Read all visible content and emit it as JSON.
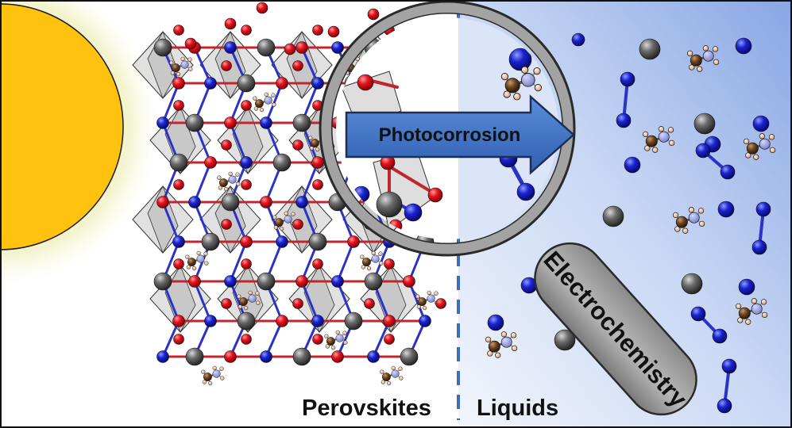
{
  "figure": {
    "arrow_label": "Photocorrosion",
    "handle_label": "Electrochemistry",
    "left_label": "Perovskites",
    "right_label": "Liquids"
  },
  "colors": {
    "sun": "#FFC20E",
    "sun_glow": "#E8E8A0",
    "liquid_bg_left": "#E9EFFB",
    "liquid_bg_right": "#8FAAE6",
    "divider": "#3D6FB8",
    "arrow_fill": "#3E73C8",
    "lens_ring": "#8C8C8C",
    "handle": "#9A9A9A",
    "oxygen_atom": "#E0141E",
    "nitrogen_atom": "#1A22C8",
    "metal_atom": "#5A5A5A",
    "carbon_atom": "#5B3A1E",
    "hydrogen_atom": "#F2C6A0"
  },
  "icons": [
    "sun-icon",
    "perovskite-lattice-icon",
    "magnifying-glass-icon",
    "molecule-icon",
    "atom-icon"
  ]
}
